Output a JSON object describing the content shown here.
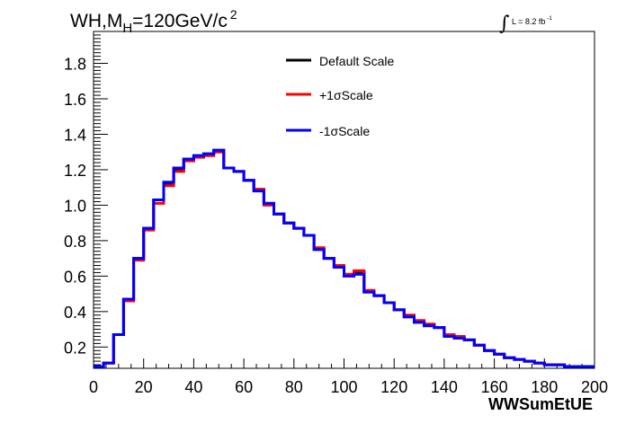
{
  "chart_data": {
    "type": "line",
    "drawstyle": "steps",
    "title": "WH,M",
    "title_sub": "H",
    "title_rest": "=120GeV/c",
    "title_sup": "2",
    "lumi_label": "L = 8.2 fb",
    "lumi_sup": "-1",
    "xlabel": "WWSumEtUE",
    "ylabel": "",
    "xlim": [
      0,
      200
    ],
    "ylim": [
      0.08,
      1.98
    ],
    "xticks": [
      0,
      20,
      40,
      60,
      80,
      100,
      120,
      140,
      160,
      180,
      200
    ],
    "yticks": [
      0.2,
      0.4,
      0.6,
      0.8,
      1.0,
      1.2,
      1.4,
      1.6,
      1.8
    ],
    "ytick_labels": [
      "0.2",
      "0.4",
      "0.6",
      "0.8",
      "1.0",
      "1.2",
      "1.4",
      "1.6",
      "1.8"
    ],
    "grid": false,
    "legend_position": "top-center",
    "bin_edges": [
      0,
      4,
      8,
      12,
      16,
      20,
      24,
      28,
      32,
      36,
      40,
      44,
      48,
      52,
      56,
      60,
      64,
      68,
      72,
      76,
      80,
      84,
      88,
      92,
      96,
      100,
      104,
      108,
      112,
      116,
      120,
      124,
      128,
      132,
      136,
      140,
      144,
      148,
      152,
      156,
      160,
      164,
      168,
      172,
      176,
      180,
      184,
      188,
      192,
      196,
      200
    ],
    "series": [
      {
        "name": "Default Scale",
        "color": "#000000",
        "values": [
          0.09,
          0.11,
          0.27,
          0.47,
          0.7,
          0.87,
          1.03,
          1.12,
          1.2,
          1.26,
          1.28,
          1.29,
          1.31,
          1.21,
          1.19,
          1.14,
          1.09,
          1.01,
          0.95,
          0.9,
          0.87,
          0.83,
          0.75,
          0.7,
          0.65,
          0.61,
          0.62,
          0.51,
          0.49,
          0.45,
          0.41,
          0.37,
          0.34,
          0.32,
          0.31,
          0.27,
          0.25,
          0.24,
          0.21,
          0.18,
          0.16,
          0.14,
          0.13,
          0.12,
          0.11,
          0.1,
          0.1,
          0.09,
          0.09,
          0.09
        ]
      },
      {
        "name": "+1σScale",
        "color": "#ff0000",
        "values": [
          0.09,
          0.11,
          0.27,
          0.46,
          0.69,
          0.86,
          1.01,
          1.11,
          1.19,
          1.25,
          1.27,
          1.28,
          1.3,
          1.21,
          1.19,
          1.14,
          1.09,
          1.0,
          0.95,
          0.9,
          0.87,
          0.83,
          0.76,
          0.7,
          0.66,
          0.61,
          0.63,
          0.52,
          0.49,
          0.45,
          0.41,
          0.38,
          0.35,
          0.33,
          0.31,
          0.27,
          0.26,
          0.24,
          0.21,
          0.18,
          0.16,
          0.14,
          0.13,
          0.12,
          0.11,
          0.1,
          0.1,
          0.09,
          0.09,
          0.09
        ]
      },
      {
        "name": "-1σScale",
        "color": "#0000ff",
        "values": [
          0.09,
          0.11,
          0.27,
          0.47,
          0.7,
          0.87,
          1.03,
          1.13,
          1.21,
          1.26,
          1.28,
          1.29,
          1.31,
          1.21,
          1.19,
          1.14,
          1.08,
          1.01,
          0.95,
          0.9,
          0.87,
          0.83,
          0.75,
          0.7,
          0.65,
          0.6,
          0.61,
          0.51,
          0.49,
          0.45,
          0.41,
          0.37,
          0.34,
          0.32,
          0.31,
          0.26,
          0.25,
          0.24,
          0.21,
          0.18,
          0.16,
          0.14,
          0.13,
          0.12,
          0.11,
          0.1,
          0.1,
          0.09,
          0.09,
          0.09
        ]
      }
    ]
  }
}
